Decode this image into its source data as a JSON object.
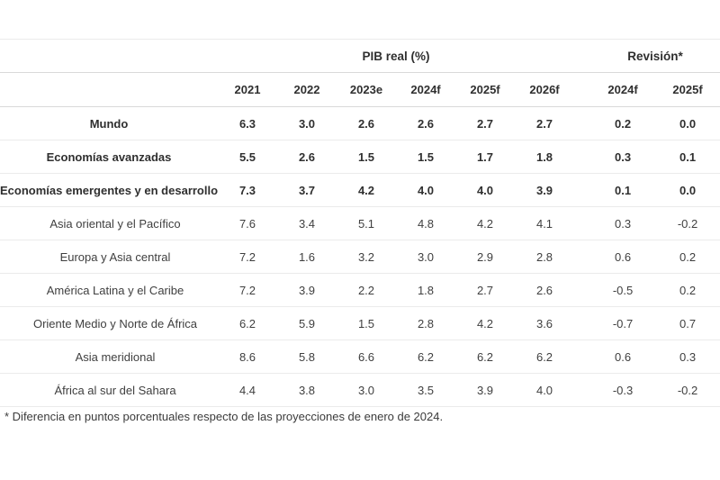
{
  "colors": {
    "text_emphasis": "#2f2f2f",
    "text_regular": "#3f3f3f",
    "header_rule": "#d9d9d9",
    "row_rule": "#ebebeb",
    "background": "#ffffff"
  },
  "table": {
    "pib_group_label": "PIB real (%)",
    "revision_group_label": "Revisión*",
    "year_columns": [
      "2021",
      "2022",
      "2023e",
      "2024f",
      "2025f",
      "2026f"
    ],
    "revision_columns": [
      "2024f",
      "2025f"
    ],
    "rows": [
      {
        "label": "Mundo",
        "emphasis": true,
        "pib": [
          "6.3",
          "3.0",
          "2.6",
          "2.6",
          "2.7",
          "2.7"
        ],
        "revision": [
          "0.2",
          "0.0"
        ]
      },
      {
        "label": "Economías avanzadas",
        "emphasis": true,
        "pib": [
          "5.5",
          "2.6",
          "1.5",
          "1.5",
          "1.7",
          "1.8"
        ],
        "revision": [
          "0.3",
          "0.1"
        ]
      },
      {
        "label": "Economías emergentes y en desarrollo",
        "emphasis": true,
        "pib": [
          "7.3",
          "3.7",
          "4.2",
          "4.0",
          "4.0",
          "3.9"
        ],
        "revision": [
          "0.1",
          "0.0"
        ]
      },
      {
        "label": "Asia oriental y el Pacífico",
        "emphasis": false,
        "pib": [
          "7.6",
          "3.4",
          "5.1",
          "4.8",
          "4.2",
          "4.1"
        ],
        "revision": [
          "0.3",
          "-0.2"
        ]
      },
      {
        "label": "Europa y Asia central",
        "emphasis": false,
        "pib": [
          "7.2",
          "1.6",
          "3.2",
          "3.0",
          "2.9",
          "2.8"
        ],
        "revision": [
          "0.6",
          "0.2"
        ]
      },
      {
        "label": "América Latina y el Caribe",
        "emphasis": false,
        "pib": [
          "7.2",
          "3.9",
          "2.2",
          "1.8",
          "2.7",
          "2.6"
        ],
        "revision": [
          "-0.5",
          "0.2"
        ]
      },
      {
        "label": "Oriente Medio y Norte de África",
        "emphasis": false,
        "pib": [
          "6.2",
          "5.9",
          "1.5",
          "2.8",
          "4.2",
          "3.6"
        ],
        "revision": [
          "-0.7",
          "0.7"
        ]
      },
      {
        "label": "Asia meridional",
        "emphasis": false,
        "pib": [
          "8.6",
          "5.8",
          "6.6",
          "6.2",
          "6.2",
          "6.2"
        ],
        "revision": [
          "0.6",
          "0.3"
        ]
      },
      {
        "label": "África al sur del Sahara",
        "emphasis": false,
        "pib": [
          "4.4",
          "3.8",
          "3.0",
          "3.5",
          "3.9",
          "4.0"
        ],
        "revision": [
          "-0.3",
          "-0.2"
        ]
      }
    ],
    "footnote": "* Diferencia en puntos porcentuales respecto de las proyecciones de enero de 2024."
  },
  "chart_data": {
    "type": "table",
    "title": "PIB real (%)",
    "column_groups": [
      {
        "label": "PIB real (%)",
        "columns": [
          "2021",
          "2022",
          "2023e",
          "2024f",
          "2025f",
          "2026f"
        ]
      },
      {
        "label": "Revisión*",
        "columns": [
          "2024f",
          "2025f"
        ]
      }
    ],
    "rows": [
      {
        "region": "Mundo",
        "pib_real": [
          6.3,
          3.0,
          2.6,
          2.6,
          2.7,
          2.7
        ],
        "revision": [
          0.2,
          0.0
        ]
      },
      {
        "region": "Economías avanzadas",
        "pib_real": [
          5.5,
          2.6,
          1.5,
          1.5,
          1.7,
          1.8
        ],
        "revision": [
          0.3,
          0.1
        ]
      },
      {
        "region": "Economías emergentes y en desarrollo",
        "pib_real": [
          7.3,
          3.7,
          4.2,
          4.0,
          4.0,
          3.9
        ],
        "revision": [
          0.1,
          0.0
        ]
      },
      {
        "region": "Asia oriental y el Pacífico",
        "pib_real": [
          7.6,
          3.4,
          5.1,
          4.8,
          4.2,
          4.1
        ],
        "revision": [
          0.3,
          -0.2
        ]
      },
      {
        "region": "Europa y Asia central",
        "pib_real": [
          7.2,
          1.6,
          3.2,
          3.0,
          2.9,
          2.8
        ],
        "revision": [
          0.6,
          0.2
        ]
      },
      {
        "region": "América Latina y el Caribe",
        "pib_real": [
          7.2,
          3.9,
          2.2,
          1.8,
          2.7,
          2.6
        ],
        "revision": [
          -0.5,
          0.2
        ]
      },
      {
        "region": "Oriente Medio y Norte de África",
        "pib_real": [
          6.2,
          5.9,
          1.5,
          2.8,
          4.2,
          3.6
        ],
        "revision": [
          -0.7,
          0.7
        ]
      },
      {
        "region": "Asia meridional",
        "pib_real": [
          8.6,
          5.8,
          6.6,
          6.2,
          6.2,
          6.2
        ],
        "revision": [
          0.6,
          0.3
        ]
      },
      {
        "region": "África al sur del Sahara",
        "pib_real": [
          4.4,
          3.8,
          3.0,
          3.5,
          3.9,
          4.0
        ],
        "revision": [
          -0.3,
          -0.2
        ]
      }
    ],
    "footnote": "* Diferencia en puntos porcentuales respecto de las proyecciones de enero de 2024."
  }
}
